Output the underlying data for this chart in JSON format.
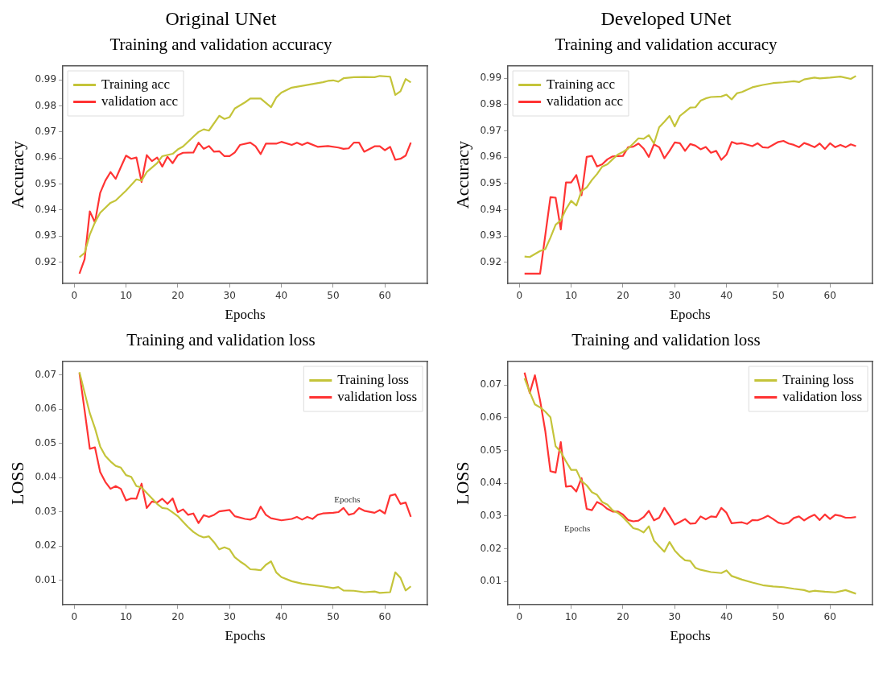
{
  "chart_data": [
    {
      "type": "line",
      "subtitle": "Original UNet",
      "title": "Training and validation accuracy",
      "xlabel": "Epochs",
      "ylabel": "Accuracy",
      "xlim": [
        -2.2,
        68.2
      ],
      "xticks": [
        0,
        10,
        20,
        30,
        40,
        50,
        60
      ],
      "ylim": [
        0.9118,
        0.9953
      ],
      "yticks": [
        0.92,
        0.93,
        0.94,
        0.95,
        0.96,
        0.97,
        0.98,
        0.99
      ],
      "grid": false,
      "legend": "top left",
      "series": [
        {
          "name": "Training acc",
          "color": "#c4c43a",
          "x": [
            1,
            2,
            3,
            4,
            5,
            7,
            8,
            10,
            12,
            13,
            14,
            16,
            17,
            19,
            20,
            21,
            23,
            24,
            25,
            26,
            28,
            29,
            30,
            31,
            33,
            34,
            36,
            38,
            39,
            40,
            42,
            44,
            46,
            48,
            49,
            50,
            51,
            52,
            54,
            56,
            58,
            59,
            61,
            62,
            63,
            64,
            65
          ],
          "values": [
            0.9219,
            0.9236,
            0.9306,
            0.9353,
            0.939,
            0.9428,
            0.9437,
            0.9475,
            0.9518,
            0.9513,
            0.9546,
            0.958,
            0.9607,
            0.9616,
            0.9633,
            0.9644,
            0.9682,
            0.97,
            0.971,
            0.9705,
            0.9762,
            0.975,
            0.9757,
            0.979,
            0.9814,
            0.9828,
            0.9828,
            0.9795,
            0.9832,
            0.9851,
            0.987,
            0.9877,
            0.9884,
            0.9891,
            0.9896,
            0.9898,
            0.9893,
            0.9906,
            0.991,
            0.9911,
            0.991,
            0.9915,
            0.9912,
            0.9842,
            0.9856,
            0.9903,
            0.989
          ]
        },
        {
          "name": "validation acc",
          "color": "#ff3333",
          "x": [
            1,
            2,
            3,
            4,
            5,
            6,
            7,
            8,
            9,
            10,
            11,
            12,
            13,
            14,
            15,
            16,
            17,
            18,
            19,
            20,
            21,
            23,
            24,
            25,
            26,
            27,
            28,
            29,
            30,
            31,
            32,
            34,
            35,
            36,
            37,
            39,
            40,
            42,
            43,
            44,
            45,
            47,
            49,
            51,
            52,
            53,
            54,
            55,
            56,
            58,
            59,
            60,
            61,
            62,
            63,
            64,
            65
          ],
          "values": [
            0.9156,
            0.9212,
            0.9395,
            0.9353,
            0.9466,
            0.9513,
            0.9546,
            0.952,
            0.9565,
            0.9609,
            0.9597,
            0.9602,
            0.9508,
            0.9611,
            0.9588,
            0.9602,
            0.9567,
            0.9605,
            0.958,
            0.9611,
            0.962,
            0.9621,
            0.9659,
            0.9635,
            0.9646,
            0.9624,
            0.9626,
            0.9607,
            0.9607,
            0.9621,
            0.965,
            0.9659,
            0.9645,
            0.9615,
            0.9655,
            0.9655,
            0.9662,
            0.965,
            0.9659,
            0.965,
            0.9659,
            0.9643,
            0.9646,
            0.964,
            0.9635,
            0.9637,
            0.9659,
            0.9659,
            0.9624,
            0.9645,
            0.9645,
            0.963,
            0.9643,
            0.9593,
            0.9597,
            0.9609,
            0.9659
          ]
        }
      ]
    },
    {
      "type": "line",
      "subtitle": "Developed UNet",
      "title": "Training and validation accuracy",
      "xlabel": "Epochs",
      "ylabel": "Accuracy",
      "xlim": [
        -2.2,
        68.2
      ],
      "xticks": [
        0,
        10,
        20,
        30,
        40,
        50,
        60
      ],
      "ylim": [
        0.9119,
        0.9947
      ],
      "yticks": [
        0.92,
        0.93,
        0.94,
        0.95,
        0.96,
        0.97,
        0.98,
        0.99
      ],
      "grid": false,
      "legend": "top left",
      "series": [
        {
          "name": "Training acc",
          "color": "#c4c43a",
          "x": [
            1,
            2,
            4,
            5,
            6,
            7,
            8,
            9,
            10,
            11,
            12,
            13,
            14,
            15,
            16,
            17,
            18,
            19,
            20,
            21,
            22,
            23,
            24,
            25,
            26,
            27,
            28,
            29,
            30,
            31,
            32,
            33,
            34,
            35,
            36,
            37,
            39,
            40,
            41,
            42,
            43,
            45,
            47,
            49,
            51,
            53,
            54,
            55,
            57,
            58,
            60,
            62,
            64,
            65
          ],
          "values": [
            0.9222,
            0.922,
            0.9243,
            0.925,
            0.9294,
            0.9343,
            0.936,
            0.9402,
            0.9434,
            0.9416,
            0.9471,
            0.9485,
            0.9513,
            0.9536,
            0.9564,
            0.9573,
            0.9592,
            0.961,
            0.962,
            0.9633,
            0.9652,
            0.9672,
            0.967,
            0.9684,
            0.9652,
            0.9714,
            0.9735,
            0.9757,
            0.9717,
            0.9757,
            0.9773,
            0.9789,
            0.979,
            0.9815,
            0.9824,
            0.9829,
            0.9831,
            0.9838,
            0.982,
            0.9843,
            0.9848,
            0.9866,
            0.9875,
            0.9882,
            0.9885,
            0.9889,
            0.9886,
            0.9896,
            0.9903,
            0.99,
            0.9903,
            0.9907,
            0.9898,
            0.9909
          ]
        },
        {
          "name": "validation acc",
          "color": "#ff3333",
          "x": [
            1,
            4,
            6,
            7,
            8,
            9,
            10,
            11,
            12,
            13,
            14,
            15,
            16,
            17,
            18,
            20,
            21,
            22,
            23,
            24,
            25,
            26,
            27,
            28,
            29,
            30,
            31,
            32,
            33,
            34,
            35,
            36,
            37,
            38,
            39,
            40,
            41,
            42,
            43,
            45,
            46,
            47,
            48,
            50,
            51,
            52,
            53,
            54,
            55,
            56,
            57,
            58,
            59,
            60,
            61,
            62,
            63,
            64,
            65
          ],
          "values": [
            0.9157,
            0.9157,
            0.9448,
            0.9446,
            0.9325,
            0.9504,
            0.9504,
            0.9532,
            0.9455,
            0.9601,
            0.9605,
            0.9565,
            0.9573,
            0.9592,
            0.9603,
            0.9605,
            0.9638,
            0.964,
            0.9652,
            0.9633,
            0.9601,
            0.9649,
            0.9638,
            0.9596,
            0.9624,
            0.9656,
            0.9653,
            0.9624,
            0.965,
            0.9644,
            0.963,
            0.9639,
            0.9617,
            0.9624,
            0.959,
            0.961,
            0.9658,
            0.9651,
            0.9653,
            0.9642,
            0.9653,
            0.9638,
            0.9636,
            0.9658,
            0.9662,
            0.9652,
            0.9647,
            0.9638,
            0.9654,
            0.9647,
            0.9638,
            0.9652,
            0.9631,
            0.9653,
            0.9638,
            0.9647,
            0.9638,
            0.9649,
            0.9642
          ]
        }
      ]
    },
    {
      "type": "line",
      "title": "Training and validation loss",
      "xlabel": "Epochs",
      "ylabel": "LOSS",
      "xlim": [
        -2.2,
        68.2
      ],
      "xticks": [
        0,
        10,
        20,
        30,
        40,
        50,
        60
      ],
      "ylim": [
        0.0028,
        0.0739
      ],
      "yticks": [
        0.01,
        0.02,
        0.03,
        0.04,
        0.05,
        0.06,
        0.07
      ],
      "grid": false,
      "legend": "top right",
      "annotations": [
        "Epochs"
      ],
      "series": [
        {
          "name": "Training loss",
          "color": "#c4c43a",
          "x": [
            1,
            2,
            3,
            4,
            5,
            6,
            7,
            8,
            9,
            10,
            11,
            12,
            13,
            14,
            15,
            16,
            17,
            18,
            19,
            20,
            21,
            22,
            23,
            24,
            25,
            26,
            27,
            28,
            29,
            30,
            31,
            32,
            33,
            34,
            35,
            36,
            37,
            38,
            39,
            40,
            42,
            44,
            46,
            48,
            50,
            51,
            52,
            54,
            56,
            58,
            59,
            61,
            62,
            63,
            64,
            65
          ],
          "values": [
            0.0708,
            0.0648,
            0.0588,
            0.0544,
            0.0491,
            0.0463,
            0.0447,
            0.0434,
            0.0429,
            0.0407,
            0.0402,
            0.0375,
            0.0371,
            0.0355,
            0.0339,
            0.0323,
            0.0311,
            0.0309,
            0.0298,
            0.0287,
            0.0271,
            0.0255,
            0.0241,
            0.0231,
            0.0225,
            0.0228,
            0.0211,
            0.019,
            0.0196,
            0.019,
            0.0167,
            0.0155,
            0.0145,
            0.0132,
            0.0131,
            0.0129,
            0.0145,
            0.0155,
            0.0123,
            0.0109,
            0.0097,
            0.009,
            0.0086,
            0.0082,
            0.0077,
            0.008,
            0.007,
            0.0069,
            0.0065,
            0.0067,
            0.0063,
            0.0065,
            0.0123,
            0.0107,
            0.007,
            0.0082
          ]
        },
        {
          "name": "validation loss",
          "color": "#ff3333",
          "x": [
            1,
            2,
            3,
            4,
            5,
            6,
            7,
            8,
            9,
            10,
            11,
            12,
            13,
            14,
            15,
            16,
            17,
            18,
            19,
            20,
            21,
            22,
            23,
            24,
            25,
            26,
            27,
            28,
            30,
            31,
            33,
            34,
            35,
            36,
            37,
            38,
            40,
            42,
            43,
            44,
            45,
            46,
            47,
            48,
            50,
            51,
            52,
            53,
            54,
            55,
            56,
            58,
            59,
            60,
            61,
            62,
            63,
            64,
            65
          ],
          "values": [
            0.0706,
            0.0596,
            0.0484,
            0.0488,
            0.0416,
            0.0387,
            0.0367,
            0.0375,
            0.0367,
            0.0333,
            0.0339,
            0.0338,
            0.0382,
            0.0311,
            0.033,
            0.0327,
            0.0338,
            0.0323,
            0.0339,
            0.0299,
            0.0307,
            0.0291,
            0.0295,
            0.0267,
            0.029,
            0.0285,
            0.0291,
            0.0301,
            0.0305,
            0.0287,
            0.0279,
            0.0277,
            0.0283,
            0.0315,
            0.0291,
            0.0281,
            0.0275,
            0.0279,
            0.0285,
            0.0277,
            0.0285,
            0.0279,
            0.0291,
            0.0295,
            0.0297,
            0.0299,
            0.0311,
            0.0291,
            0.0295,
            0.0311,
            0.0303,
            0.0297,
            0.0305,
            0.0295,
            0.0347,
            0.0351,
            0.0323,
            0.0327,
            0.0285
          ]
        }
      ]
    },
    {
      "type": "line",
      "title": "Training and validation loss",
      "xlabel": "Epochs",
      "ylabel": "LOSS",
      "xlim": [
        -2.2,
        68.2
      ],
      "xticks": [
        0,
        10,
        20,
        30,
        40,
        50,
        60
      ],
      "ylim": [
        0.0029,
        0.0772
      ],
      "yticks": [
        0.01,
        0.02,
        0.03,
        0.04,
        0.05,
        0.06,
        0.07
      ],
      "grid": false,
      "legend": "top right",
      "annotations": [
        "Epochs"
      ],
      "series": [
        {
          "name": "Training loss",
          "color": "#c4c43a",
          "x": [
            1,
            2,
            3,
            4,
            5,
            6,
            7,
            8,
            9,
            10,
            11,
            12,
            13,
            14,
            15,
            16,
            17,
            18,
            19,
            20,
            21,
            22,
            23,
            24,
            25,
            26,
            27,
            28,
            29,
            30,
            31,
            32,
            33,
            34,
            35,
            37,
            39,
            40,
            41,
            43,
            45,
            47,
            49,
            51,
            53,
            55,
            56,
            57,
            59,
            61,
            63,
            65
          ],
          "values": [
            0.0721,
            0.0679,
            0.0641,
            0.0632,
            0.0619,
            0.0602,
            0.0513,
            0.0496,
            0.0467,
            0.0441,
            0.0441,
            0.0407,
            0.0394,
            0.0373,
            0.0365,
            0.0343,
            0.0335,
            0.0318,
            0.031,
            0.0297,
            0.028,
            0.0263,
            0.0259,
            0.025,
            0.0269,
            0.0225,
            0.0208,
            0.0191,
            0.0221,
            0.0195,
            0.0178,
            0.0165,
            0.0163,
            0.0142,
            0.0136,
            0.0129,
            0.0126,
            0.0134,
            0.0117,
            0.0106,
            0.0097,
            0.0089,
            0.0085,
            0.0083,
            0.0078,
            0.0074,
            0.0069,
            0.0072,
            0.0069,
            0.0067,
            0.0074,
            0.0063
          ]
        },
        {
          "name": "validation loss",
          "color": "#ff3333",
          "x": [
            1,
            2,
            3,
            4,
            5,
            6,
            7,
            8,
            9,
            10,
            11,
            12,
            13,
            14,
            15,
            16,
            17,
            18,
            19,
            20,
            21,
            22,
            23,
            24,
            25,
            26,
            27,
            28,
            29,
            30,
            31,
            32,
            33,
            34,
            35,
            36,
            37,
            38,
            39,
            40,
            41,
            42,
            43,
            44,
            45,
            46,
            47,
            48,
            49,
            50,
            51,
            52,
            53,
            54,
            55,
            56,
            57,
            58,
            59,
            60,
            61,
            62,
            63,
            64,
            65
          ],
          "values": [
            0.0738,
            0.0676,
            0.073,
            0.0653,
            0.056,
            0.0437,
            0.0433,
            0.0526,
            0.039,
            0.0392,
            0.0375,
            0.0416,
            0.0322,
            0.0318,
            0.0343,
            0.0335,
            0.0322,
            0.0314,
            0.0314,
            0.0305,
            0.0288,
            0.0284,
            0.0286,
            0.0297,
            0.0316,
            0.0287,
            0.0295,
            0.0325,
            0.0301,
            0.0274,
            0.0282,
            0.0291,
            0.0277,
            0.0278,
            0.0299,
            0.029,
            0.0299,
            0.0297,
            0.0325,
            0.031,
            0.0278,
            0.028,
            0.0281,
            0.0276,
            0.0288,
            0.0287,
            0.0293,
            0.0301,
            0.0291,
            0.028,
            0.0276,
            0.028,
            0.0294,
            0.0299,
            0.0287,
            0.0297,
            0.0304,
            0.0288,
            0.0305,
            0.0291,
            0.0304,
            0.0301,
            0.0295,
            0.0295,
            0.0297
          ]
        }
      ]
    }
  ]
}
